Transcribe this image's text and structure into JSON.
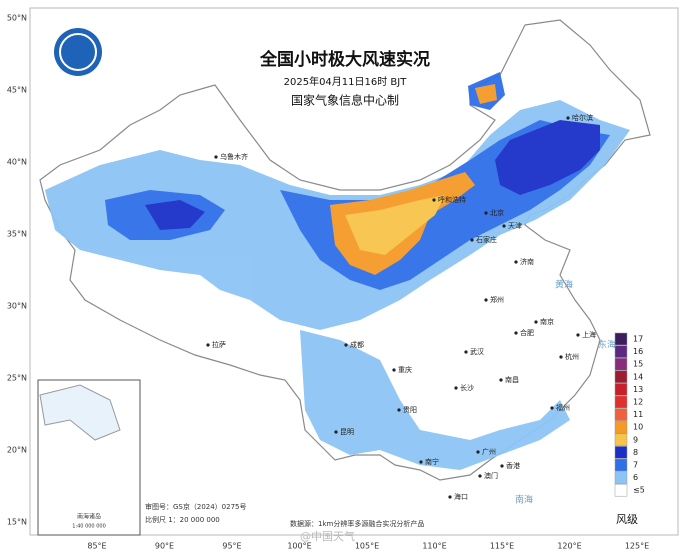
{
  "title": "全国小时极大风速实况",
  "timestamp": "2025年04月11日16时 BJT",
  "agency": "国家气象信息中心制",
  "latitude_labels": [
    "50°N",
    "45°N",
    "40°N",
    "35°N",
    "30°N",
    "25°N",
    "20°N",
    "15°N"
  ],
  "longitude_labels": [
    "85°E",
    "90°E",
    "95°E",
    "100°E",
    "105°E",
    "110°E",
    "115°E",
    "120°E",
    "125°E"
  ],
  "legend": {
    "title": "风级",
    "levels": [
      {
        "label": "17",
        "color": "#3a1f5c"
      },
      {
        "label": "16",
        "color": "#5b2a80"
      },
      {
        "label": "15",
        "color": "#8a2c7e"
      },
      {
        "label": "14",
        "color": "#9e1b32"
      },
      {
        "label": "13",
        "color": "#c8202a"
      },
      {
        "label": "12",
        "color": "#e0302c"
      },
      {
        "label": "11",
        "color": "#f0603a"
      },
      {
        "label": "10",
        "color": "#f59a28"
      },
      {
        "label": "9",
        "color": "#f7c34a"
      },
      {
        "label": "8",
        "color": "#1a2fc8"
      },
      {
        "label": "7",
        "color": "#2f6fe8"
      },
      {
        "label": "6",
        "color": "#8cc4f5"
      },
      {
        "label": "≤5",
        "color": "#ffffff"
      }
    ]
  },
  "cities": [
    "乌鲁木齐",
    "拉萨",
    "成都",
    "重庆",
    "贵阳",
    "昆明",
    "南宁",
    "广州",
    "香港",
    "澳门",
    "海口",
    "长沙",
    "武汉",
    "南昌",
    "福州",
    "杭州",
    "上海",
    "南京",
    "合肥",
    "郑州",
    "济南",
    "北京",
    "天津",
    "石家庄",
    "呼和浩特",
    "哈尔滨"
  ],
  "seas": [
    "黄海",
    "东海",
    "南海"
  ],
  "inset": {
    "title": "南海诸岛",
    "scale": "1:40 000 000"
  },
  "footer": {
    "approval": "审图号：GS京（2024）0275号",
    "scale": "比例尺 1：20 000 000",
    "source": "数据源：1km分辨率多源融合实况分析产品"
  },
  "watermark": "@中国天气"
}
